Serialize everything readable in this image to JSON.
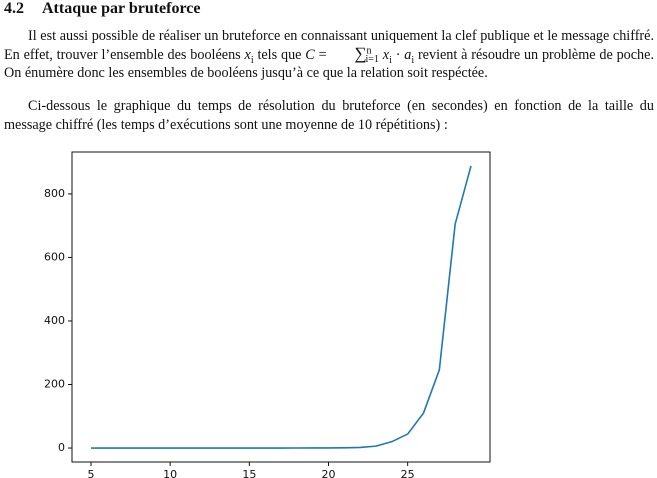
{
  "section": {
    "number": "4.2",
    "title": "Attaque par bruteforce"
  },
  "paragraphs": [
    [
      "Il est aussi possible de réaliser un bruteforce en connaissant uniquement la clef publique et le message chiffré. En effet, trouver l’ensemble des booléens ",
      "x",
      "i",
      " tels que ",
      "C",
      " = ",
      "∑",
      "n",
      "i=1",
      "x",
      "i",
      " · ",
      "a",
      "i",
      " revient à résoudre un problème de poche. On énumère donc les ensembles de booléens jusqu’à ce que la relation soit respéctée."
    ],
    [
      "Ci-dessous le graphique du temps de résolution du bruteforce (en secondes) en fonction de la taille du message chiffré (les temps d’exécutions sont une moyenne de 10 répétitions) :"
    ]
  ],
  "chart_data": {
    "type": "line",
    "x": [
      5,
      6,
      7,
      8,
      9,
      10,
      11,
      12,
      13,
      14,
      15,
      16,
      17,
      18,
      19,
      20,
      21,
      22,
      23,
      24,
      25,
      26,
      27,
      28,
      29
    ],
    "values": [
      0,
      0,
      0,
      0,
      0,
      0,
      0,
      0,
      0,
      0,
      0,
      0,
      0,
      0.1,
      0.2,
      0.4,
      0.8,
      2,
      6,
      20,
      44,
      110,
      246,
      705,
      888
    ],
    "color": "#1f77b4",
    "xlim": [
      3.8,
      30.2
    ],
    "xticks": [
      5,
      10,
      15,
      20,
      25
    ],
    "ylim": [
      -44,
      932
    ],
    "yticks": [
      0,
      200,
      400,
      600,
      800
    ]
  }
}
